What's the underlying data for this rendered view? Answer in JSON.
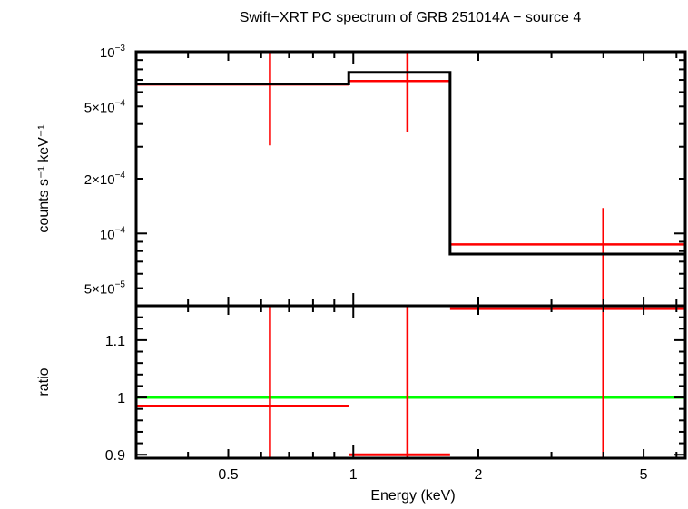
{
  "chart_data": {
    "type": "step-with-errorbars",
    "title": "Swift−XRT PC spectrum of GRB 251014A − source 4",
    "xlabel": "Energy (keV)",
    "xscale": "log",
    "xlim": [
      0.3,
      6.3
    ],
    "xticks": [
      {
        "v": 0.5,
        "label": "0.5"
      },
      {
        "v": 1,
        "label": "1"
      },
      {
        "v": 2,
        "label": "2"
      },
      {
        "v": 5,
        "label": "5"
      }
    ],
    "top_panel": {
      "ylabel": "counts s⁻¹ keV⁻¹",
      "yscale": "log",
      "ylim": [
        4e-05,
        0.001
      ],
      "yticks": [
        {
          "v": 0.001,
          "mant": "",
          "exp": "−3"
        },
        {
          "v": 0.0005,
          "mant": "5×",
          "exp": "−4"
        },
        {
          "v": 0.0002,
          "mant": "2×",
          "exp": "−4"
        },
        {
          "v": 0.0001,
          "mant": "",
          "exp": "−4"
        },
        {
          "v": 5e-05,
          "mant": "5×",
          "exp": "−5"
        }
      ],
      "data": [
        {
          "elo": 0.3,
          "ehi": 0.975,
          "e": 0.63,
          "y": 0.00066,
          "ylo": 0.000305,
          "yhi": 0.0015
        },
        {
          "elo": 0.975,
          "ehi": 1.71,
          "e": 1.35,
          "y": 0.00069,
          "ylo": 0.00036,
          "yhi": 0.0015
        },
        {
          "elo": 1.71,
          "ehi": 6.3,
          "e": 4.0,
          "y": 8.7e-05,
          "ylo": 2e-05,
          "yhi": 0.000138
        }
      ],
      "model": [
        {
          "elo": 0.3,
          "ehi": 0.975,
          "y": 0.000665
        },
        {
          "elo": 0.975,
          "ehi": 1.71,
          "y": 0.00077
        },
        {
          "elo": 1.71,
          "ehi": 6.3,
          "y": 7.7e-05
        }
      ]
    },
    "bottom_panel": {
      "ylabel": "ratio",
      "yscale": "linear",
      "ylim": [
        0.894,
        1.16
      ],
      "yticks": [
        {
          "v": 0.9,
          "label": "0.9"
        },
        {
          "v": 1,
          "label": "1"
        },
        {
          "v": 1.1,
          "label": "1.1"
        }
      ],
      "reference": 1.0,
      "data": [
        {
          "elo": 0.3,
          "ehi": 0.975,
          "e": 0.63,
          "y": 0.985
        },
        {
          "elo": 0.975,
          "ehi": 1.71,
          "e": 1.35,
          "y": 0.9
        },
        {
          "elo": 1.71,
          "ehi": 6.3,
          "e": 4.0,
          "y": 1.155
        }
      ]
    },
    "colors": {
      "data": "#ff0000",
      "model": "#000000",
      "reference": "#00ff00"
    }
  }
}
